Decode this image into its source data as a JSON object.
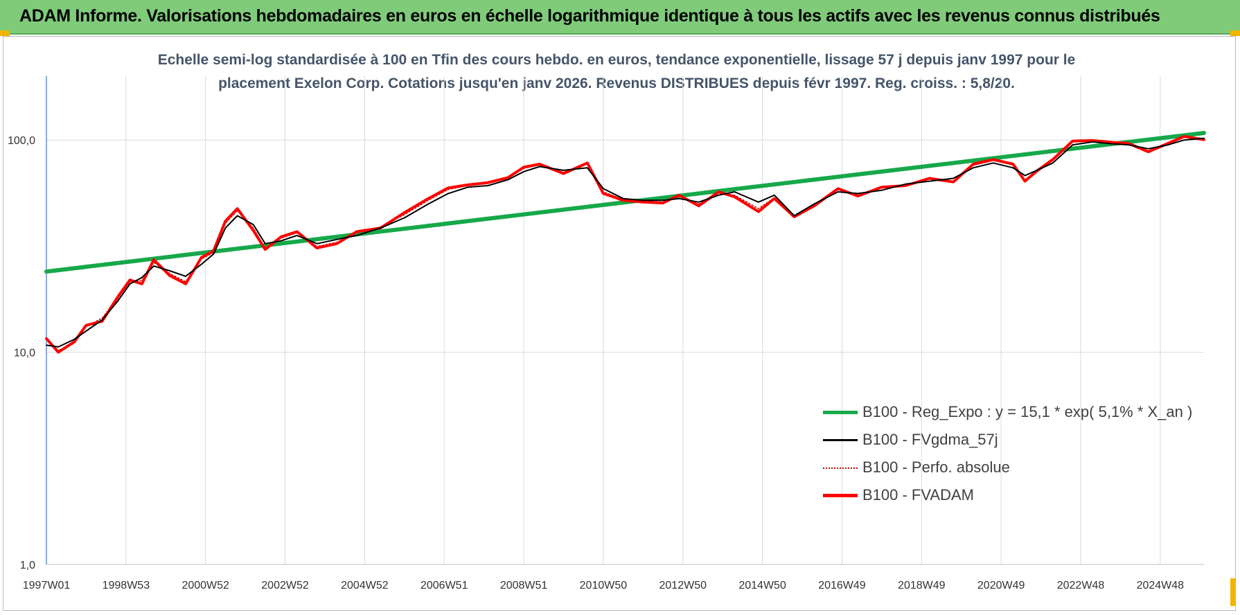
{
  "banner": {
    "title": "ADAM Informe. Valorisations hebdomadaires en euros en échelle logarithmique identique à tous les actifs avec les revenus connus distribués"
  },
  "colors": {
    "banner_bg": "#7fcb7a",
    "corner_accent": "#f2b400",
    "subtitle_text": "#44546a",
    "reg_expo": "#16a84a",
    "fvgdma": "#000000",
    "perfo": "#c00000",
    "fvadam": "#ff0000"
  },
  "chart_data": {
    "type": "line",
    "title_line1": "Echelle semi-log standardisée à 100 en Tfin des cours hebdo. en euros, tendance exponentielle, lissage 57 j depuis janv 1997 pour le",
    "title_line2": "placement Exelon Corp. Cotations jusqu'en janv 2026. Revenus DISTRIBUES depuis févr 1997. Reg. croiss. : 5,8/20.",
    "y_scale": "log",
    "ylim": [
      1,
      200
    ],
    "y_ticks": [
      {
        "value": 1,
        "label": "1,0"
      },
      {
        "value": 10,
        "label": "10,0"
      },
      {
        "value": 100,
        "label": "100,0"
      }
    ],
    "xlim": [
      1997.0,
      2026.1
    ],
    "x_ticks": [
      {
        "value": 1997.0,
        "label": "1997W01"
      },
      {
        "value": 1999.0,
        "label": "1998W53"
      },
      {
        "value": 2001.0,
        "label": "2000W52"
      },
      {
        "value": 2003.0,
        "label": "2002W52"
      },
      {
        "value": 2005.0,
        "label": "2004W52"
      },
      {
        "value": 2007.0,
        "label": "2006W51"
      },
      {
        "value": 2009.0,
        "label": "2008W51"
      },
      {
        "value": 2011.0,
        "label": "2010W50"
      },
      {
        "value": 2013.0,
        "label": "2012W50"
      },
      {
        "value": 2015.0,
        "label": "2014W50"
      },
      {
        "value": 2017.0,
        "label": "2016W49"
      },
      {
        "value": 2019.0,
        "label": "2018W49"
      },
      {
        "value": 2021.0,
        "label": "2020W49"
      },
      {
        "value": 2023.0,
        "label": "2022W48"
      },
      {
        "value": 2025.0,
        "label": "2024W48"
      }
    ],
    "grid": true,
    "legend_position": "bottom-right",
    "series": [
      {
        "name": "B100 - Reg_Expo : y = 15,1 * exp( 5,1% *  X_an )",
        "kind": "reg",
        "x": [
          1997.0,
          2026.1
        ],
        "y": [
          24,
          108
        ]
      },
      {
        "name": "B100 - FVgdma_57j",
        "kind": "smooth",
        "x": [
          1997.0,
          1997.3,
          1997.7,
          1998.0,
          1998.4,
          1998.8,
          1999.1,
          1999.4,
          1999.7,
          2000.1,
          2000.5,
          2000.9,
          2001.2,
          2001.5,
          2001.8,
          2002.2,
          2002.5,
          2002.9,
          2003.3,
          2003.8,
          2004.3,
          2004.8,
          2005.4,
          2006.0,
          2006.6,
          2007.1,
          2007.6,
          2008.1,
          2008.6,
          2009.0,
          2009.4,
          2010.0,
          2010.6,
          2011.0,
          2011.5,
          2012.0,
          2012.5,
          2012.9,
          2013.4,
          2013.9,
          2014.3,
          2014.9,
          2015.3,
          2015.8,
          2016.3,
          2016.9,
          2017.4,
          2018.0,
          2018.6,
          2019.2,
          2019.8,
          2020.3,
          2020.8,
          2021.3,
          2021.6,
          2021.9,
          2022.3,
          2022.8,
          2023.3,
          2023.8,
          2024.2,
          2024.7,
          2025.2,
          2025.6,
          2026.1
        ],
        "y": [
          10.8,
          10.6,
          11.5,
          12.6,
          14.2,
          17.5,
          21,
          22.5,
          25.5,
          24.2,
          22.8,
          26,
          29,
          38.5,
          44,
          40,
          32.5,
          33.5,
          35.5,
          32.5,
          34,
          35.5,
          38.5,
          43,
          50,
          56,
          60,
          61,
          65,
          71,
          75,
          72,
          74,
          59,
          53,
          52,
          52,
          53,
          51,
          55,
          57,
          51,
          55,
          44,
          50,
          57,
          56,
          58,
          62,
          64,
          66,
          74,
          78,
          74,
          68,
          72,
          78,
          95,
          98,
          96,
          95,
          91,
          95,
          100,
          102
        ]
      },
      {
        "name": "B100 - Perfo. absolue",
        "kind": "perfo",
        "x": [
          1997.0,
          1997.3,
          1997.7,
          1998.0,
          1998.4,
          1998.8,
          1999.1,
          1999.4,
          1999.7,
          2000.1,
          2000.5,
          2000.9,
          2001.2,
          2001.5,
          2001.8,
          2002.2,
          2002.5,
          2002.9,
          2003.3,
          2003.8,
          2004.3,
          2004.8,
          2005.4,
          2006.0,
          2006.6,
          2007.1,
          2007.6,
          2008.1,
          2008.6,
          2009.0,
          2009.4,
          2010.0,
          2010.6,
          2011.0,
          2011.5,
          2012.0,
          2012.5,
          2012.9,
          2013.4,
          2013.9,
          2014.3,
          2014.9,
          2015.3,
          2015.8,
          2016.3,
          2016.9,
          2017.4,
          2018.0,
          2018.6,
          2019.2,
          2019.8,
          2020.3,
          2020.8,
          2021.3,
          2021.6,
          2021.9,
          2022.3,
          2022.8,
          2023.3,
          2023.8,
          2024.2,
          2024.7,
          2025.2,
          2025.6,
          2026.1
        ],
        "y": [
          11.5,
          10.2,
          11.0,
          13.2,
          14.5,
          18.0,
          21.5,
          21.8,
          26.5,
          23.5,
          21.5,
          27.5,
          29.5,
          40.5,
          46.5,
          38.5,
          31.0,
          34.5,
          36.5,
          31.5,
          33.0,
          36.5,
          39.0,
          44.5,
          52.0,
          58.5,
          61.0,
          63.5,
          66.0,
          73.5,
          76.5,
          70.5,
          77.0,
          57.0,
          52.5,
          51.5,
          51.0,
          54.5,
          50.0,
          56.0,
          55.0,
          47.5,
          53.5,
          44.0,
          49.5,
          58.5,
          55.0,
          59.5,
          61.5,
          65.5,
          64.0,
          76.0,
          80.0,
          76.5,
          65.0,
          72.0,
          80.0,
          98.0,
          99.0,
          97.0,
          96.0,
          89.0,
          96.0,
          103.0,
          101.0
        ]
      },
      {
        "name": "B100 - FVADAM",
        "kind": "adam",
        "x": [
          1997.0,
          1997.3,
          1997.7,
          1998.0,
          1998.4,
          1998.8,
          1999.1,
          1999.4,
          1999.7,
          2000.1,
          2000.5,
          2000.9,
          2001.2,
          2001.5,
          2001.8,
          2002.2,
          2002.5,
          2002.9,
          2003.3,
          2003.8,
          2004.3,
          2004.8,
          2005.4,
          2006.0,
          2006.6,
          2007.1,
          2007.6,
          2008.1,
          2008.6,
          2009.0,
          2009.4,
          2010.0,
          2010.6,
          2011.0,
          2011.5,
          2012.0,
          2012.5,
          2012.9,
          2013.4,
          2013.9,
          2014.3,
          2014.9,
          2015.3,
          2015.8,
          2016.3,
          2016.9,
          2017.4,
          2018.0,
          2018.6,
          2019.2,
          2019.8,
          2020.3,
          2020.8,
          2021.3,
          2021.6,
          2021.9,
          2022.3,
          2022.8,
          2023.3,
          2023.8,
          2024.2,
          2024.7,
          2025.2,
          2025.6,
          2026.1
        ],
        "y": [
          11.6,
          10.0,
          11.2,
          13.4,
          14.0,
          18.3,
          21.9,
          21.0,
          27.3,
          23.0,
          21.0,
          28.0,
          30.0,
          41.5,
          47.5,
          37.5,
          30.5,
          35.0,
          37.0,
          31.0,
          32.5,
          37.0,
          38.5,
          45.5,
          53.0,
          59.5,
          61.5,
          63.0,
          66.5,
          74.5,
          77.0,
          69.5,
          78.0,
          56.0,
          52.0,
          51.0,
          50.5,
          55.0,
          49.0,
          57.0,
          54.0,
          46.0,
          53.0,
          43.5,
          49.0,
          59.0,
          54.5,
          60.0,
          61.0,
          66.0,
          63.5,
          77.0,
          81.0,
          77.0,
          64.0,
          71.5,
          81.0,
          99.0,
          99.5,
          97.5,
          96.5,
          88.0,
          96.5,
          104.0,
          100.5
        ]
      }
    ]
  }
}
